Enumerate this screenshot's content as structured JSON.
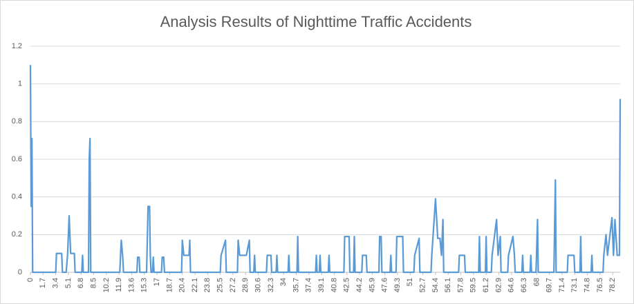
{
  "chart_data": {
    "type": "line",
    "title": "Analysis Results of Nighttime Traffic Accidents",
    "color": "#5b9bd5",
    "grid": true,
    "x": [
      0,
      0.1,
      0.2,
      0.3,
      3.4,
      3.5,
      4.2,
      4.3,
      4.8,
      5.0,
      5.2,
      5.4,
      5.9,
      6.0,
      6.9,
      7.0,
      7.1,
      7.8,
      7.9,
      8.0,
      8.1,
      12.0,
      12.1,
      12.2,
      12.4,
      12.5,
      14.3,
      14.4,
      14.6,
      14.7,
      15.6,
      15.8,
      16.0,
      16.1,
      16.2,
      16.4,
      16.5,
      16.6,
      17.6,
      17.7,
      17.9,
      18.0,
      20.3,
      20.4,
      20.6,
      21.3,
      21.4,
      21.5,
      25.5,
      25.6,
      26.2,
      26.3,
      27.8,
      27.9,
      28.1,
      28.8,
      29.0,
      29.4,
      29.5,
      30.0,
      30.1,
      30.2,
      31.7,
      31.8,
      32.3,
      32.4,
      33.0,
      33.1,
      33.2,
      34.6,
      34.7,
      34.8,
      35.8,
      35.9,
      36.0,
      38.3,
      38.4,
      38.5,
      38.8,
      38.9,
      39.0,
      40.0,
      40.1,
      40.2,
      42.1,
      42.2,
      42.8,
      42.9,
      43.4,
      43.5,
      43.6,
      44.5,
      44.6,
      45.1,
      45.2,
      46.8,
      46.9,
      47.1,
      47.2,
      48.3,
      48.4,
      48.5,
      49.1,
      49.2,
      50.0,
      50.1,
      51.5,
      51.6,
      52.2,
      52.3,
      53.8,
      53.9,
      54.4,
      54.7,
      55.0,
      55.2,
      55.4,
      55.5,
      57.5,
      57.6,
      58.3,
      58.4,
      60.2,
      60.3,
      60.4,
      61.1,
      61.2,
      61.3,
      61.9,
      62.0,
      62.6,
      62.8,
      63.1,
      63.2,
      64.1,
      64.2,
      64.8,
      65.0,
      65.1,
      66.0,
      66.1,
      66.2,
      67.1,
      67.2,
      67.3,
      67.9,
      68.1,
      68.2,
      70.3,
      70.5,
      70.6,
      72.1,
      72.2,
      73.0,
      73.1,
      73.8,
      73.9,
      74.0,
      75.3,
      75.4,
      75.5,
      76.9,
      77.0,
      77.3,
      77.5,
      78.1,
      78.3,
      78.5,
      78.8,
      79.1,
      79.2
    ],
    "values": [
      1.1,
      0.35,
      0.71,
      0,
      0,
      0.1,
      0.1,
      0,
      0,
      0.1,
      0.3,
      0.1,
      0.1,
      0,
      0,
      0.09,
      0,
      0,
      0.6,
      0.71,
      0,
      0,
      0.09,
      0.17,
      0.08,
      0,
      0,
      0.08,
      0.08,
      0,
      0,
      0.35,
      0.35,
      0.09,
      0,
      0,
      0.08,
      0,
      0,
      0.08,
      0.08,
      0,
      0,
      0.17,
      0.09,
      0.09,
      0.17,
      0,
      0,
      0.09,
      0.17,
      0,
      0,
      0.17,
      0.09,
      0.09,
      0.09,
      0.17,
      0,
      0,
      0.09,
      0,
      0,
      0.09,
      0.09,
      0,
      0,
      0.09,
      0,
      0,
      0.09,
      0,
      0,
      0.19,
      0,
      0,
      0.09,
      0,
      0,
      0.09,
      0,
      0,
      0.09,
      0,
      0,
      0.19,
      0.19,
      0,
      0,
      0.19,
      0,
      0,
      0.09,
      0.09,
      0,
      0,
      0.19,
      0.19,
      0,
      0,
      0.09,
      0,
      0,
      0.19,
      0.19,
      0,
      0,
      0.09,
      0.18,
      0,
      0,
      0.09,
      0.39,
      0.18,
      0.18,
      0.09,
      0.28,
      0,
      0,
      0.09,
      0.09,
      0,
      0,
      0.19,
      0,
      0,
      0.19,
      0,
      0,
      0.09,
      0.28,
      0.09,
      0.19,
      0,
      0,
      0.09,
      0.19,
      0.09,
      0,
      0,
      0.09,
      0,
      0,
      0.09,
      0,
      0,
      0.28,
      0,
      0,
      0.49,
      0,
      0,
      0.09,
      0.09,
      0,
      0,
      0.19,
      0,
      0,
      0.09,
      0,
      0,
      0.09,
      0.2,
      0.09,
      0.29,
      0.09,
      0.28,
      0.09,
      0.09,
      0.92
    ],
    "xlim": [
      0,
      79.2
    ],
    "xticks": [
      0,
      1.7,
      3.4,
      5.1,
      6.8,
      8.5,
      10.2,
      11.9,
      13.6,
      15.3,
      17,
      18.7,
      20.4,
      22.1,
      23.8,
      25.5,
      27.2,
      28.9,
      30.6,
      32.3,
      34,
      35.7,
      37.4,
      39.1,
      40.8,
      42.5,
      44.2,
      45.9,
      47.6,
      49.3,
      51,
      52.7,
      54.4,
      56.1,
      57.8,
      59.5,
      61.2,
      62.9,
      64.6,
      66.3,
      68,
      69.7,
      71.4,
      73.1,
      74.8,
      76.5,
      78.2
    ],
    "ylim": [
      0,
      1.2
    ],
    "yticks": [
      0,
      0.2,
      0.4,
      0.6,
      0.8,
      1,
      1.2
    ]
  }
}
